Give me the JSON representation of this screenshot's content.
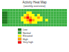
{
  "chart_data": {
    "type": "heatmap",
    "title": "Activity Heat Map",
    "subtitle": "(weekly overview)",
    "tick_labels": false,
    "cells": [
      [
        1,
        1,
        1,
        1,
        1,
        1,
        1,
        1,
        1,
        1,
        1,
        1,
        1,
        1,
        1,
        1,
        1,
        1,
        1,
        1,
        1,
        1,
        1,
        1
      ],
      [
        0,
        0,
        1,
        1,
        1,
        1,
        1,
        1,
        1,
        2,
        2,
        1,
        1,
        1,
        1,
        1,
        1,
        1,
        1,
        1,
        1,
        1,
        1,
        1
      ],
      [
        0,
        0,
        1,
        1,
        1,
        1,
        1,
        1,
        2,
        3,
        2,
        2,
        1,
        2,
        1,
        1,
        1,
        1,
        1,
        1,
        1,
        1,
        1,
        1
      ],
      [
        0,
        0,
        1,
        1,
        1,
        1,
        1,
        2,
        3,
        4,
        3,
        2,
        2,
        3,
        2,
        1,
        1,
        1,
        1,
        1,
        1,
        1,
        1,
        1
      ],
      [
        0,
        0,
        1,
        1,
        1,
        1,
        1,
        2,
        2,
        3,
        4,
        3,
        2,
        2,
        2,
        1,
        2,
        1,
        1,
        1,
        1,
        1,
        1,
        1
      ],
      [
        0,
        0,
        1,
        1,
        1,
        1,
        1,
        1,
        2,
        2,
        3,
        2,
        2,
        1,
        1,
        1,
        1,
        1,
        1,
        1,
        1,
        1,
        1,
        1
      ],
      [
        1,
        1,
        1,
        1,
        1,
        1,
        1,
        1,
        1,
        1,
        1,
        1,
        1,
        1,
        1,
        1,
        1,
        1,
        1,
        1,
        1,
        1,
        1,
        1
      ]
    ],
    "color_scale": {
      "values": [
        0,
        1,
        2,
        3,
        4
      ],
      "colors": [
        "#1e7a1e",
        "#3cb043",
        "#ffff00",
        "#ff9900",
        "#ff0000"
      ],
      "labels": [
        "Low",
        "Normal",
        "Elevated",
        "High",
        "Very high"
      ]
    }
  }
}
